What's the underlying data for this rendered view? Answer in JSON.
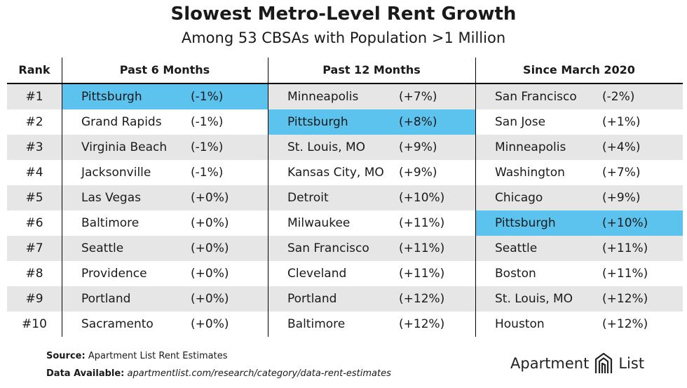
{
  "title": "Slowest Metro-Level Rent Growth",
  "subtitle": "Among 53 CBSAs with Population >1 Million",
  "headers": {
    "rank": "Rank",
    "col1": "Past 6 Months",
    "col2": "Past 12 Months",
    "col3": "Since March 2020"
  },
  "highlight_color": "#5bc3ee",
  "highlight_city": "Pittsburgh",
  "chart_data": {
    "type": "table",
    "title": "Slowest Metro-Level Rent Growth",
    "subtitle": "Among 53 CBSAs with Population >1 Million",
    "columns": [
      "Rank",
      "Past 6 Months",
      "Past 12 Months",
      "Since March 2020"
    ],
    "rows": [
      {
        "rank": "#1",
        "c1": {
          "city": "Pittsburgh",
          "val": "(-1%)"
        },
        "c2": {
          "city": "Minneapolis",
          "val": "(+7%)"
        },
        "c3": {
          "city": "San Francisco",
          "val": "(-2%)"
        }
      },
      {
        "rank": "#2",
        "c1": {
          "city": "Grand Rapids",
          "val": "(-1%)"
        },
        "c2": {
          "city": "Pittsburgh",
          "val": "(+8%)"
        },
        "c3": {
          "city": "San Jose",
          "val": "(+1%)"
        }
      },
      {
        "rank": "#3",
        "c1": {
          "city": "Virginia Beach",
          "val": "(-1%)"
        },
        "c2": {
          "city": "St. Louis, MO",
          "val": "(+9%)"
        },
        "c3": {
          "city": "Minneapolis",
          "val": "(+4%)"
        }
      },
      {
        "rank": "#4",
        "c1": {
          "city": "Jacksonville",
          "val": "(-1%)"
        },
        "c2": {
          "city": "Kansas City, MO",
          "val": "(+9%)"
        },
        "c3": {
          "city": "Washington",
          "val": "(+7%)"
        }
      },
      {
        "rank": "#5",
        "c1": {
          "city": "Las Vegas",
          "val": "(+0%)"
        },
        "c2": {
          "city": "Detroit",
          "val": "(+10%)"
        },
        "c3": {
          "city": "Chicago",
          "val": "(+9%)"
        }
      },
      {
        "rank": "#6",
        "c1": {
          "city": "Baltimore",
          "val": "(+0%)"
        },
        "c2": {
          "city": "Milwaukee",
          "val": "(+11%)"
        },
        "c3": {
          "city": "Pittsburgh",
          "val": "(+10%)"
        }
      },
      {
        "rank": "#7",
        "c1": {
          "city": "Seattle",
          "val": "(+0%)"
        },
        "c2": {
          "city": "San Francisco",
          "val": "(+11%)"
        },
        "c3": {
          "city": "Seattle",
          "val": "(+11%)"
        }
      },
      {
        "rank": "#8",
        "c1": {
          "city": "Providence",
          "val": "(+0%)"
        },
        "c2": {
          "city": "Cleveland",
          "val": "(+11%)"
        },
        "c3": {
          "city": "Boston",
          "val": "(+11%)"
        }
      },
      {
        "rank": "#9",
        "c1": {
          "city": "Portland",
          "val": "(+0%)"
        },
        "c2": {
          "city": "Portland",
          "val": "(+12%)"
        },
        "c3": {
          "city": "St. Louis, MO",
          "val": "(+12%)"
        }
      },
      {
        "rank": "#10",
        "c1": {
          "city": "Sacramento",
          "val": "(+0%)"
        },
        "c2": {
          "city": "Baltimore",
          "val": "(+12%)"
        },
        "c3": {
          "city": "Houston",
          "val": "(+12%)"
        }
      }
    ]
  },
  "footer": {
    "source_label": "Source:",
    "source_text": "Apartment List Rent Estimates",
    "avail_label": "Data Available:",
    "avail_text": "apartmentlist.com/research/category/data-rent-estimates"
  },
  "logo": {
    "word1": "Apartment",
    "word2": "List",
    "icon": "apartment-list-logo-icon"
  }
}
